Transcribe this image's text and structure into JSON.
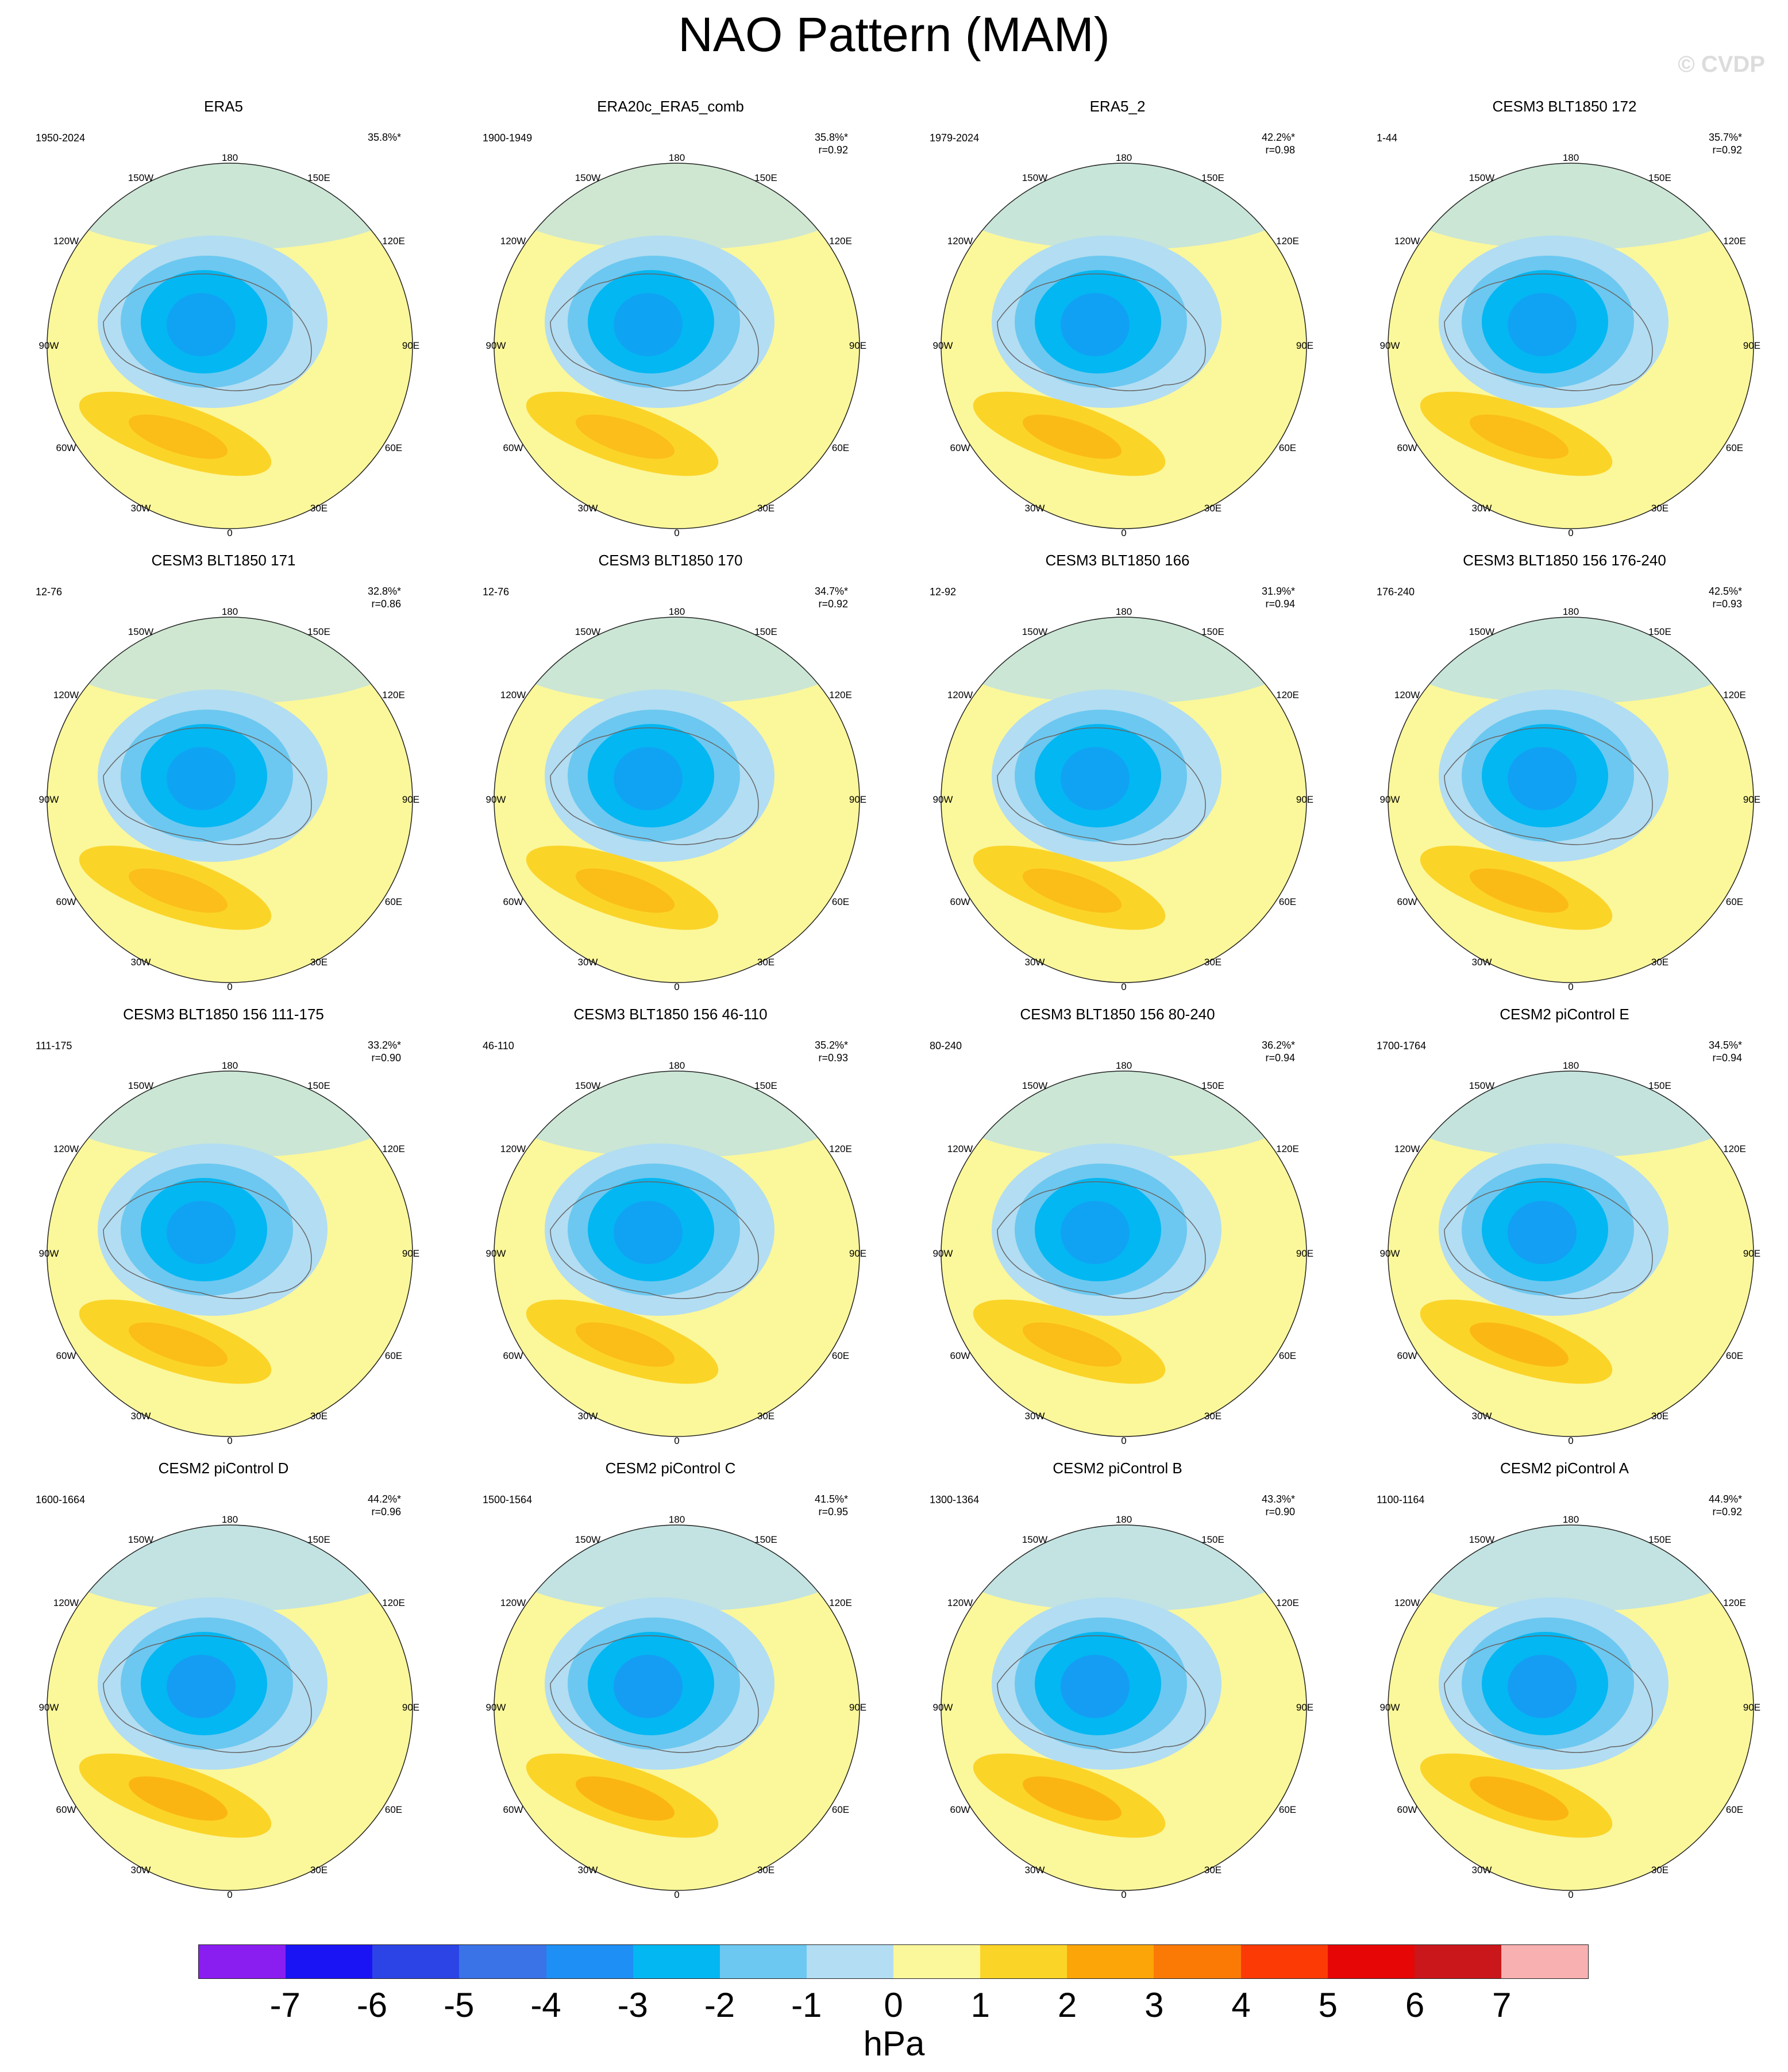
{
  "title": "NAO Pattern (MAM)",
  "watermark": "© CVDP",
  "lon_labels": {
    "top": "180",
    "tl": "150W",
    "tr": "150E",
    "ul": "120W",
    "ur": "120E",
    "ml": "90W",
    "mr": "90E",
    "ll": "60W",
    "lr": "60E",
    "bl": "30W",
    "br": "30E",
    "bottom": "0"
  },
  "panels": [
    {
      "title": "ERA5",
      "years": "1950-2024",
      "pct": "35.8%*",
      "r": "",
      "fill": 0.3
    },
    {
      "title": "ERA20c_ERA5_comb",
      "years": "1900-1949",
      "pct": "35.8%*",
      "r": "r=0.92",
      "fill": 0.25
    },
    {
      "title": "ERA5_2",
      "years": "1979-2024",
      "pct": "42.2%*",
      "r": "r=0.98",
      "fill": 0.35
    },
    {
      "title": "CESM3 BLT1850 172",
      "years": "1-44",
      "pct": "35.7%*",
      "r": "r=0.92",
      "fill": 0.3
    },
    {
      "title": "CESM3 BLT1850 171",
      "years": "12-76",
      "pct": "32.8%*",
      "r": "r=0.86",
      "fill": 0.25
    },
    {
      "title": "CESM3 BLT1850 170",
      "years": "12-76",
      "pct": "34.7%*",
      "r": "r=0.92",
      "fill": 0.3
    },
    {
      "title": "CESM3 BLT1850 166",
      "years": "12-92",
      "pct": "31.9%*",
      "r": "r=0.94",
      "fill": 0.3
    },
    {
      "title": "CESM3 BLT1850 156 176-240",
      "years": "176-240",
      "pct": "42.5%*",
      "r": "r=0.93",
      "fill": 0.35
    },
    {
      "title": "CESM3 BLT1850 156 111-175",
      "years": "111-175",
      "pct": "33.2%*",
      "r": "r=0.90",
      "fill": 0.3
    },
    {
      "title": "CESM3 BLT1850 156 46-110",
      "years": "46-110",
      "pct": "35.2%*",
      "r": "r=0.93",
      "fill": 0.3
    },
    {
      "title": "CESM3 BLT1850 156 80-240",
      "years": "80-240",
      "pct": "36.2%*",
      "r": "r=0.94",
      "fill": 0.3
    },
    {
      "title": "CESM2 piControl E",
      "years": "1700-1764",
      "pct": "34.5%*",
      "r": "r=0.94",
      "fill": 0.4
    },
    {
      "title": "CESM2 piControl D",
      "years": "1600-1664",
      "pct": "44.2%*",
      "r": "r=0.96",
      "fill": 0.45
    },
    {
      "title": "CESM2 piControl C",
      "years": "1500-1564",
      "pct": "41.5%*",
      "r": "r=0.95",
      "fill": 0.45
    },
    {
      "title": "CESM2 piControl B",
      "years": "1300-1364",
      "pct": "43.3%*",
      "r": "r=0.90",
      "fill": 0.45
    },
    {
      "title": "CESM2 piControl A",
      "years": "1100-1164",
      "pct": "44.9%*",
      "r": "r=0.92",
      "fill": 0.45
    }
  ],
  "colorbar": {
    "unit": "hPa",
    "colors": [
      "#8a1ef0",
      "#1a14f5",
      "#2c44e6",
      "#3a72e8",
      "#1e8ff5",
      "#03b7f2",
      "#6cc8f0",
      "#b3ddf2",
      "#fbf79b",
      "#fbd428",
      "#fba508",
      "#fb7a06",
      "#fb3a06",
      "#e70606",
      "#c9171b",
      "#f9b0b0"
    ],
    "ticks": [
      "-7",
      "-6",
      "-5",
      "-4",
      "-3",
      "-2",
      "-1",
      "0",
      "1",
      "2",
      "3",
      "4",
      "5",
      "6",
      "7"
    ]
  }
}
